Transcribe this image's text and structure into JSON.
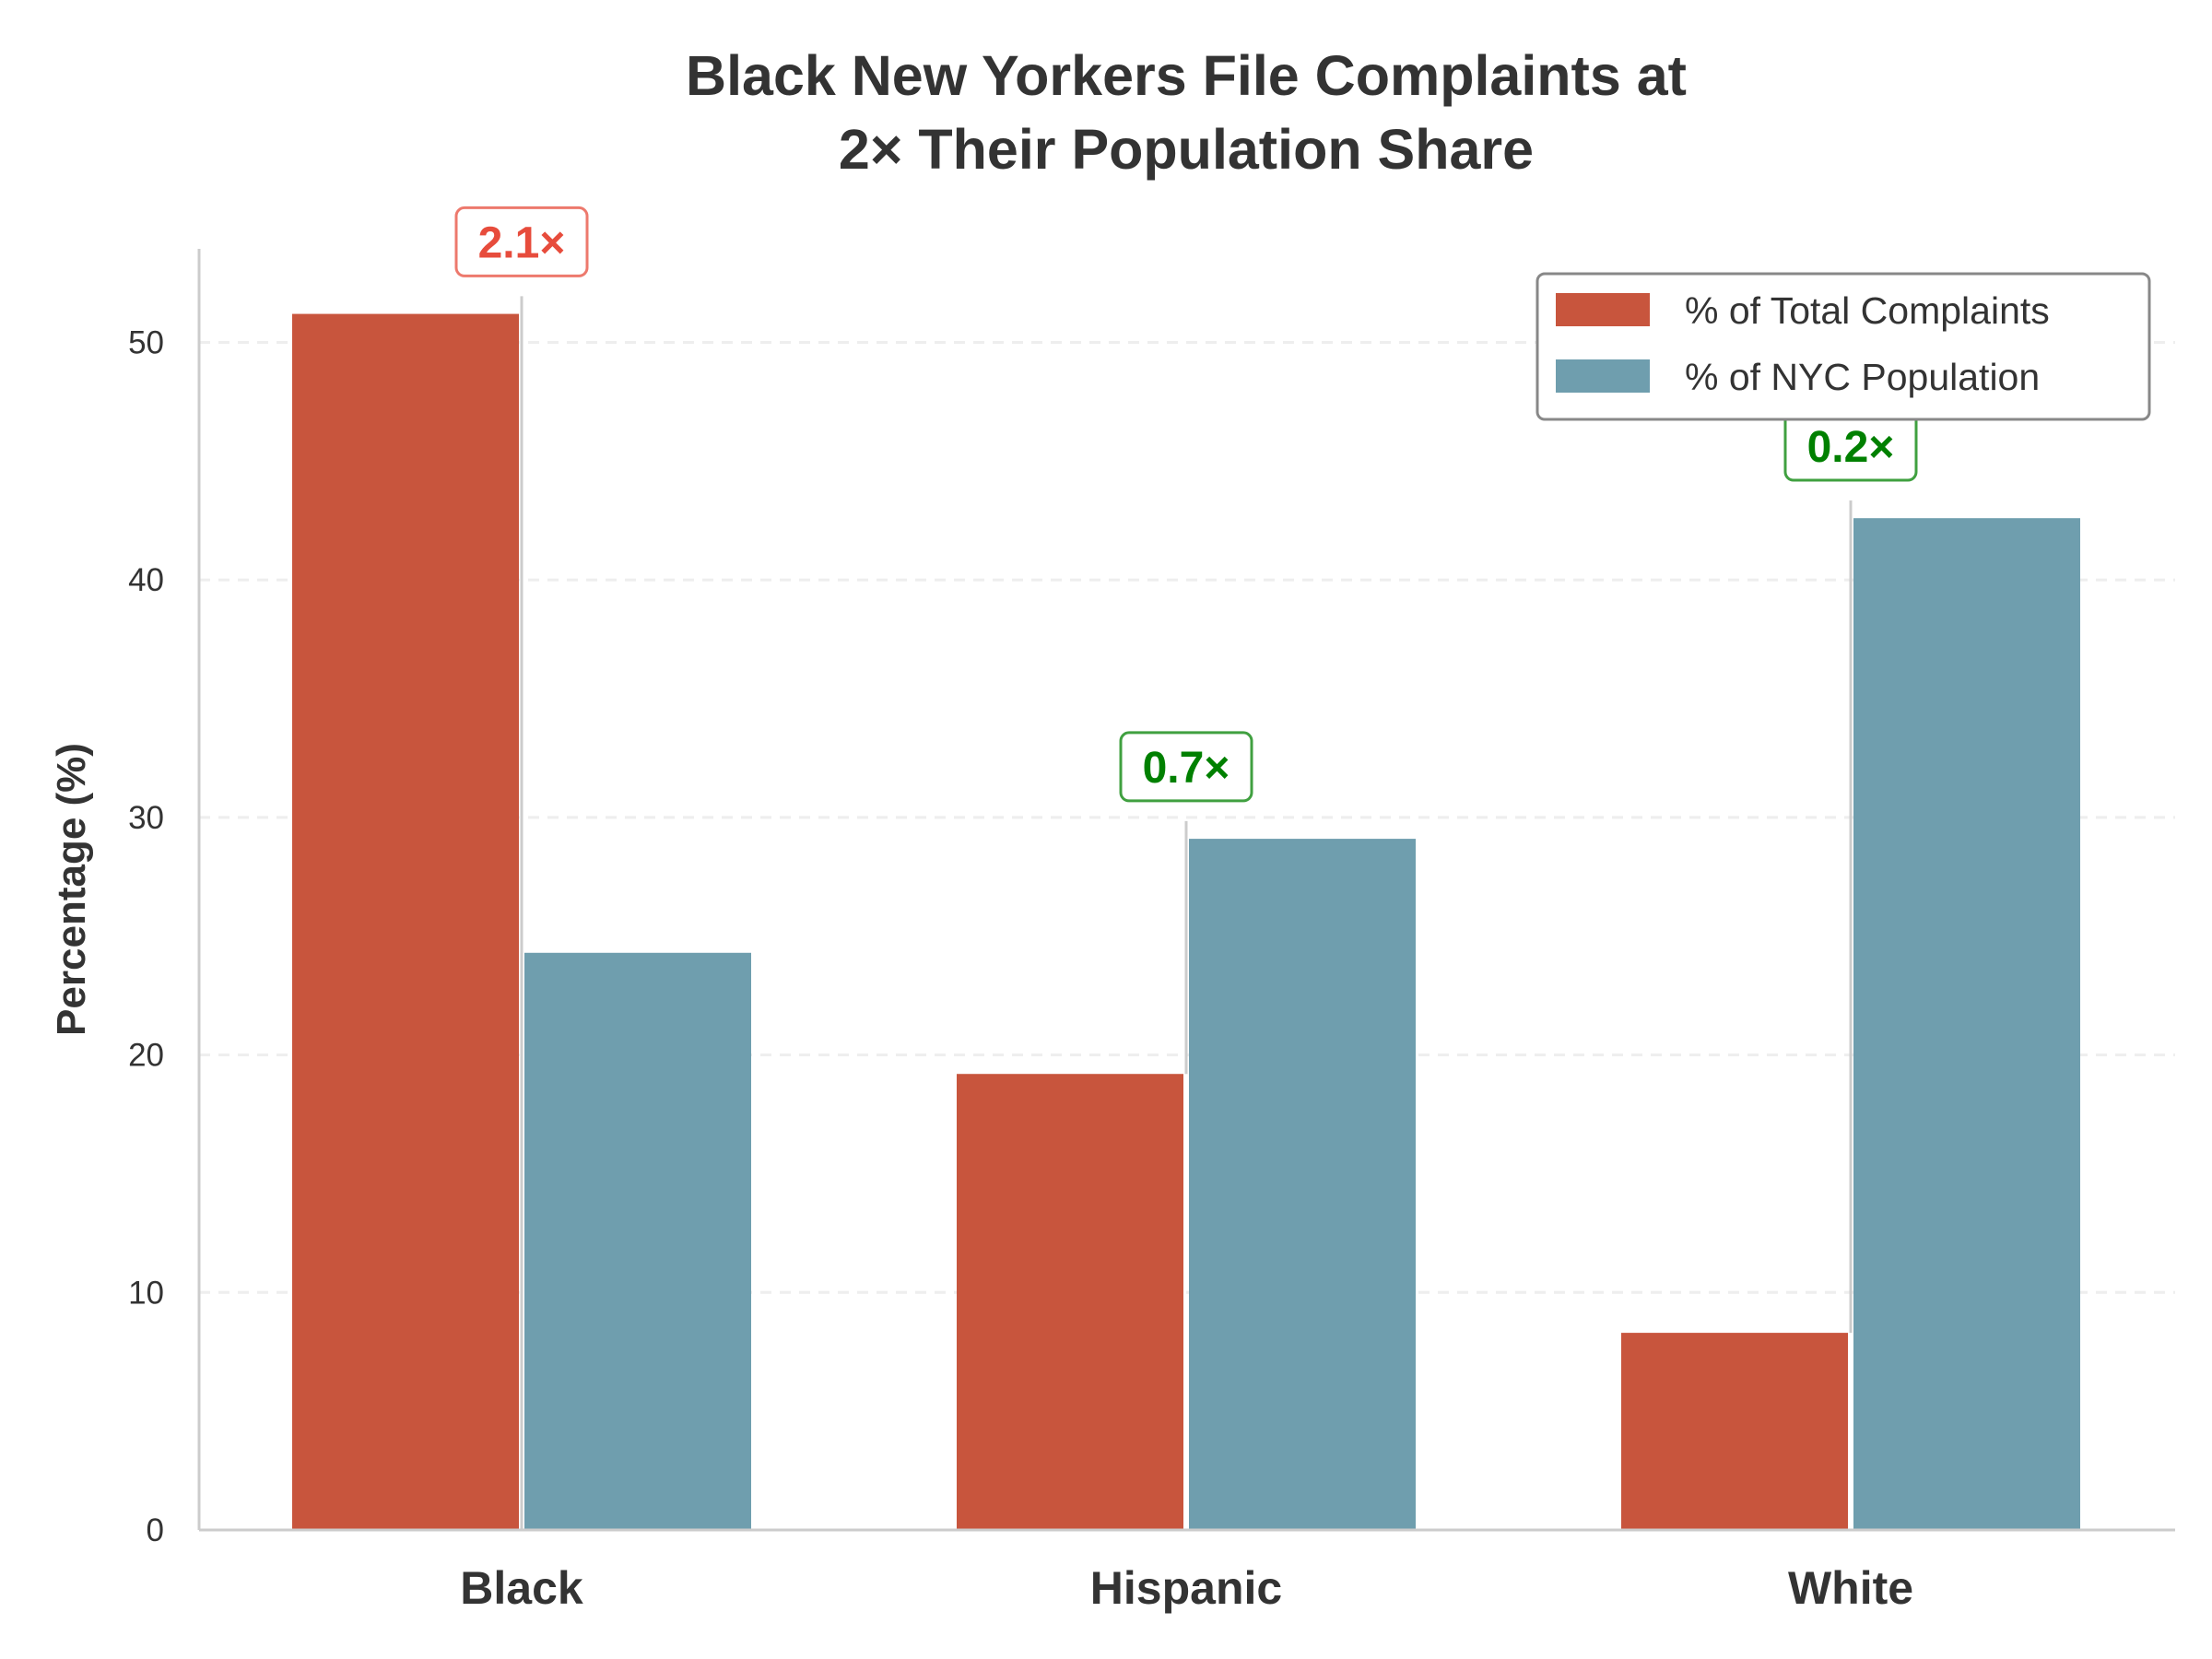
{
  "chart_data": {
    "type": "bar",
    "title_lines": [
      "Black New Yorkers File Complaints at",
      "2× Their Population Share"
    ],
    "xlabel": "",
    "ylabel": "Percentage (%)",
    "ylim": [
      0,
      54
    ],
    "yticks": [
      0,
      10,
      20,
      30,
      40,
      50
    ],
    "ytick_labels": [
      "0",
      "10",
      "20",
      "30",
      "40",
      "50"
    ],
    "grid": "horizontal-dashed",
    "legend_position": "top-right",
    "categories": [
      "Black",
      "Hispanic",
      "White"
    ],
    "series": [
      {
        "name": "% of Total Complaints",
        "color": "#c8553d",
        "values": [
          51.2,
          19.2,
          8.3
        ]
      },
      {
        "name": "% of NYC Population",
        "color": "#6f9eae",
        "values": [
          24.3,
          29.1,
          42.6
        ]
      }
    ],
    "annotations": [
      {
        "category": "Black",
        "label": "2.1×",
        "color": "#e74c3c",
        "y": 54
      },
      {
        "category": "Hispanic",
        "label": "0.7×",
        "color": "#008000",
        "y": 31.9
      },
      {
        "category": "White",
        "label": "0.2×",
        "color": "#008000",
        "y": 45.4
      }
    ]
  }
}
